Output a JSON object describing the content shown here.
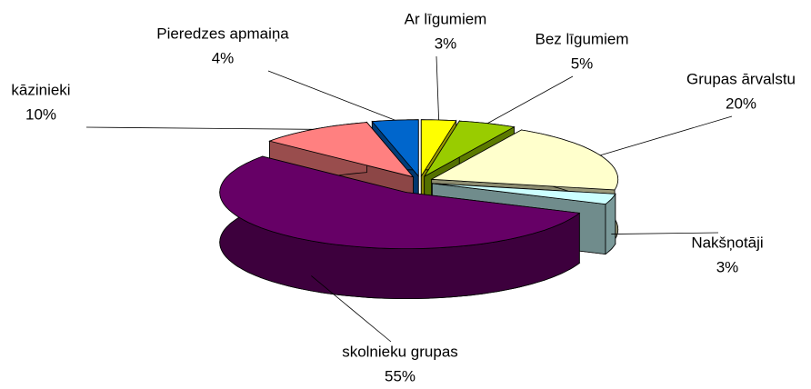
{
  "chart_data": {
    "type": "pie3d",
    "categories": [
      "Ar līgumiem",
      "Bez līgumiem",
      "Grupas ārvalstu",
      "Nakšņotāji",
      "skolnieku grupas",
      "kāzinieki",
      "Pieredzes apmaiņa"
    ],
    "values": [
      3,
      5,
      20,
      3,
      55,
      10,
      4
    ],
    "value_labels": [
      "3%",
      "5%",
      "20%",
      "3%",
      "55%",
      "10%",
      "4%"
    ],
    "colors": [
      "#ffff00",
      "#99cc00",
      "#ffffcc",
      "#ccffff",
      "#660066",
      "#ff8080",
      "#0066cc"
    ]
  }
}
